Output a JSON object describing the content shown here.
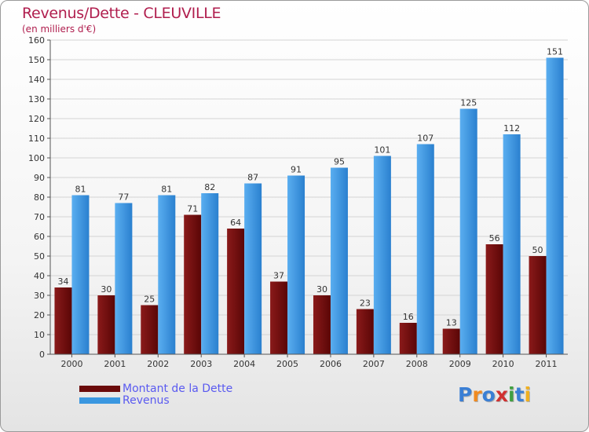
{
  "header": {
    "title": "Revenus/Dette - CLEUVILLE",
    "subtitle": "(en milliers d'€)"
  },
  "chart_data": {
    "type": "bar",
    "title": "Revenus/Dette - CLEUVILLE",
    "subtitle": "(en milliers d'€)",
    "categories": [
      "2000",
      "2001",
      "2002",
      "2003",
      "2004",
      "2005",
      "2006",
      "2007",
      "2008",
      "2009",
      "2010",
      "2011"
    ],
    "series": [
      {
        "name": "Montant de la Dette",
        "color": "#7a1010",
        "values": [
          34,
          30,
          25,
          71,
          64,
          37,
          30,
          23,
          16,
          13,
          56,
          50
        ]
      },
      {
        "name": "Revenus",
        "color": "#3a97e0",
        "values": [
          81,
          77,
          81,
          82,
          87,
          91,
          95,
          101,
          107,
          125,
          112,
          151
        ]
      }
    ],
    "ylim": [
      0,
      160
    ],
    "yticks": [
      0,
      10,
      20,
      30,
      40,
      50,
      60,
      70,
      80,
      90,
      100,
      110,
      120,
      130,
      140,
      150,
      160
    ],
    "grid": true,
    "legend_position": "bottom-left"
  },
  "legend": {
    "items": [
      {
        "label": "Montant de la Dette",
        "color": "#6a0a0a"
      },
      {
        "label": "Revenus",
        "color": "#3a97e0"
      }
    ]
  },
  "logo": {
    "text": "Proxiti",
    "letters": [
      {
        "ch": "P",
        "color": "#3a7fd5"
      },
      {
        "ch": "r",
        "color": "#f08a20"
      },
      {
        "ch": "o",
        "color": "#3a7fd5"
      },
      {
        "ch": "x",
        "color": "#d03030"
      },
      {
        "ch": "i",
        "color": "#40a040"
      },
      {
        "ch": "t",
        "color": "#3a7fd5"
      },
      {
        "ch": "i",
        "color": "#f0b020"
      }
    ]
  }
}
